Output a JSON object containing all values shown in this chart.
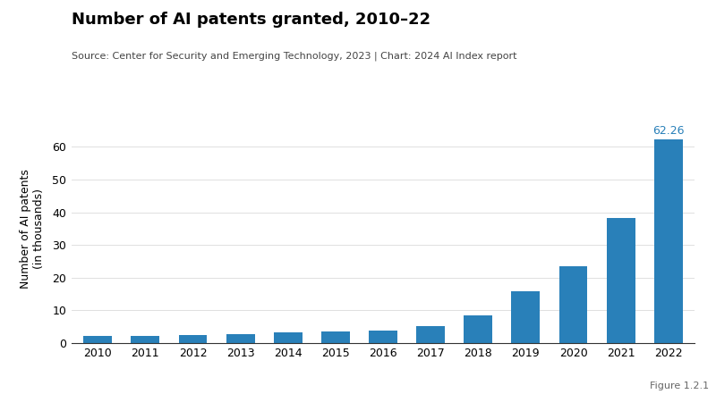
{
  "title": "Number of AI patents granted, 2010–22",
  "subtitle": "Source: Center for Security and Emerging Technology, 2023 | Chart: 2024 AI Index report",
  "figure_label": "Figure 1.2.1",
  "years": [
    2010,
    2011,
    2012,
    2013,
    2014,
    2015,
    2016,
    2017,
    2018,
    2019,
    2020,
    2021,
    2022
  ],
  "values": [
    2.0,
    2.2,
    2.5,
    2.7,
    3.1,
    3.5,
    3.8,
    5.1,
    8.5,
    15.8,
    23.5,
    38.2,
    62.26
  ],
  "bar_color": "#2980b9",
  "annotation_value": "62.26",
  "annotation_color": "#2980b9",
  "ylabel": "Number of AI patents\n(in thousands)",
  "ylim": [
    0,
    70
  ],
  "yticks": [
    0,
    10,
    20,
    30,
    40,
    50,
    60
  ],
  "background_color": "#ffffff",
  "title_fontsize": 13,
  "subtitle_fontsize": 8,
  "axis_label_fontsize": 9,
  "tick_fontsize": 9,
  "annotation_fontsize": 9,
  "figure_label_fontsize": 8,
  "grid_color": "#e0e0e0",
  "spine_color": "#333333"
}
